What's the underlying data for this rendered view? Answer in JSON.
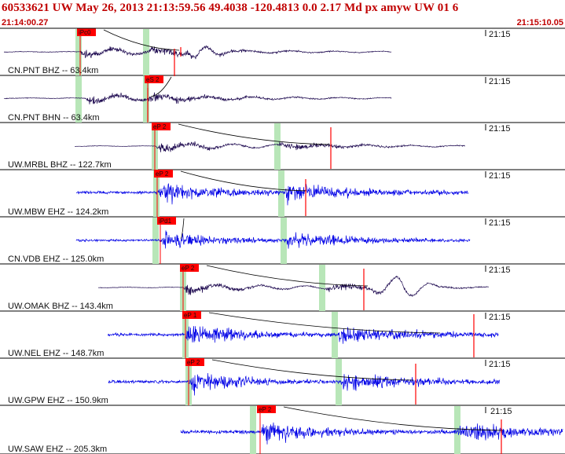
{
  "header": {
    "title": "60533621 UW May 26, 2013 21:13:59.56   49.4038 -120.4813  0.0 2.17 Md px amyw UW 01    6",
    "time_start": "21:14:00.27",
    "time_end": "21:15:10.05"
  },
  "colors": {
    "header_text": "#c00000",
    "broadband_trace": "#1e0a50",
    "short_period_trace": "#0000e6",
    "pick_flag": "#ff0000",
    "pick_window": "#b8e6b8",
    "coda_curve": "#000000"
  },
  "traces": [
    {
      "label": "CN.PNT BHZ -- 63.4km",
      "time_tick": "21:15",
      "pick_label": "iPc0",
      "color": "broadband_trace"
    },
    {
      "label": "CN.PNT BHN -- 63.4km",
      "time_tick": "21:15",
      "pick_label": "eS 2",
      "color": "broadband_trace"
    },
    {
      "label": "UW.MRBL BHZ -- 122.7km",
      "time_tick": "21:15",
      "pick_label": "eP 2",
      "color": "broadband_trace"
    },
    {
      "label": "UW.MBW EHZ -- 124.2km",
      "time_tick": "21:15",
      "pick_label": "eP 2",
      "color": "short_period_trace"
    },
    {
      "label": "CN.VDB EHZ -- 125.0km",
      "time_tick": "21:15",
      "pick_label": "iPd1",
      "color": "short_period_trace"
    },
    {
      "label": "UW.OMAK BHZ -- 143.4km",
      "time_tick": "21:15",
      "pick_label": "eP 2",
      "color": "broadband_trace"
    },
    {
      "label": "UW.NEL EHZ -- 148.7km",
      "time_tick": "21:15",
      "pick_label": "eP 1",
      "color": "short_period_trace"
    },
    {
      "label": "UW.GPW EHZ -- 150.9km",
      "time_tick": "21:15",
      "pick_label": "eP 2",
      "color": "short_period_trace"
    },
    {
      "label": "UW.SAW EHZ -- 205.3km",
      "time_tick": "21:15",
      "pick_label": "eP 2",
      "color": "short_period_trace"
    }
  ]
}
